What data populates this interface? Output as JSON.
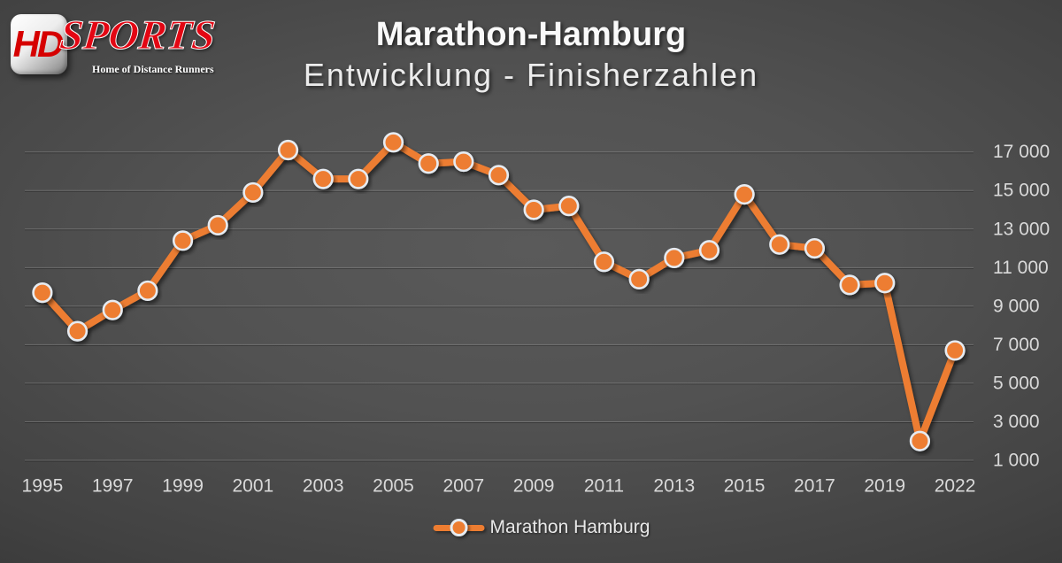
{
  "logo": {
    "hd": "HD",
    "sports": "SPORTS",
    "tagline": "Home of Distance Runners"
  },
  "title": {
    "line1": "Marathon-Hamburg",
    "line2": "Entwicklung - Finisherzahlen"
  },
  "legend": {
    "label": "Marathon Hamburg"
  },
  "colors": {
    "series": "#ED7D31",
    "marker_ring": "#e6ebf1",
    "axis_text": "#d9d9d9",
    "background_center": "#5a5a5a",
    "background_edge": "#212121"
  },
  "chart_data": {
    "type": "line",
    "title": "Marathon-Hamburg",
    "subtitle": "Entwicklung - Finisherzahlen",
    "legend_entries": [
      "Marathon Hamburg"
    ],
    "legend_position": "bottom",
    "grid": "horizontal",
    "categories": [
      "1995",
      "1996",
      "1997",
      "1998",
      "1999",
      "2000",
      "2001",
      "2002",
      "2003",
      "2004",
      "2005",
      "2006",
      "2007",
      "2008",
      "2009",
      "2010",
      "2011",
      "2012",
      "2013",
      "2014",
      "2015",
      "2016",
      "2017",
      "2018",
      "2019",
      "2021",
      "2022"
    ],
    "series": [
      {
        "name": "Marathon Hamburg",
        "values": [
          9700,
          7700,
          8800,
          9800,
          12400,
          13200,
          14900,
          17100,
          15600,
          15600,
          17500,
          16400,
          16500,
          15800,
          14000,
          14200,
          11300,
          10400,
          11500,
          11900,
          14800,
          12200,
          12000,
          10100,
          10200,
          2000,
          6700
        ]
      }
    ],
    "xlabel": "",
    "ylabel": "",
    "ylim": [
      1000,
      17000
    ],
    "xticks": [
      "1995",
      "1997",
      "1999",
      "2001",
      "2003",
      "2005",
      "2007",
      "2009",
      "2011",
      "2013",
      "2015",
      "2017",
      "2019",
      "2022"
    ],
    "yticks": [
      {
        "value": 17000,
        "label": "17 000"
      },
      {
        "value": 15000,
        "label": "15 000"
      },
      {
        "value": 13000,
        "label": "13 000"
      },
      {
        "value": 11000,
        "label": "11 000"
      },
      {
        "value": 9000,
        "label": "9 000"
      },
      {
        "value": 7000,
        "label": "7 000"
      },
      {
        "value": 5000,
        "label": "5 000"
      },
      {
        "value": 3000,
        "label": "3 000"
      },
      {
        "value": 1000,
        "label": "1 000"
      }
    ]
  }
}
